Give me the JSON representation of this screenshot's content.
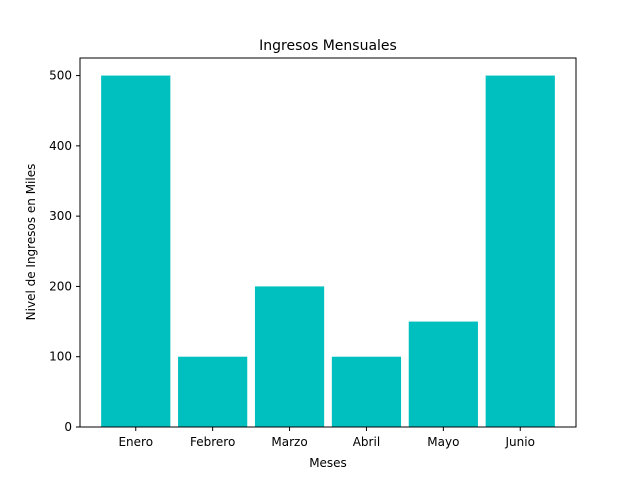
{
  "chart_data": {
    "type": "bar",
    "title": "Ingresos Mensuales",
    "xlabel": "Meses",
    "ylabel": "Nivel de Ingresos en Miles",
    "categories": [
      "Enero",
      "Febrero",
      "Marzo",
      "Abril",
      "Mayo",
      "Junio"
    ],
    "values": [
      500,
      100,
      200,
      100,
      150,
      500
    ],
    "ylim": [
      0,
      525
    ],
    "yticks": [
      0,
      100,
      200,
      300,
      400,
      500
    ],
    "grid": false,
    "bar_color": "#00bfbf"
  }
}
